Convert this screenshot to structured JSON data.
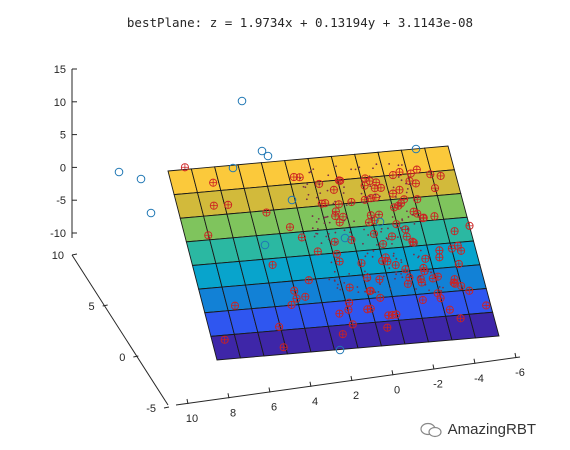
{
  "title": "bestPlane:  z =  1.9734x + 0.13194y + 3.1143e-08",
  "watermark": "AmazingRBT",
  "chart_data": {
    "type": "scatter3d-with-plane",
    "plane": {
      "a": 1.9734,
      "b": 0.13194,
      "c": 3.1143e-08
    },
    "zlim": [
      -10,
      15
    ],
    "xlim": [
      -6,
      10
    ],
    "ylim": [
      -5,
      10
    ],
    "z_ticks": [
      "-10",
      "-5",
      "0",
      "5",
      "10",
      "15"
    ],
    "x_ticks": [
      "10",
      "8",
      "6",
      "4",
      "2",
      "0",
      "-2",
      "-4",
      "-6"
    ],
    "y_ticks": [
      "-5",
      "0",
      "5",
      "10"
    ],
    "colormap": [
      "#3e26a8",
      "#2f56f0",
      "#1281d6",
      "#08a4cc",
      "#2bb8a2",
      "#7fc45d",
      "#d2ba3b",
      "#fbc93b"
    ],
    "outliers_marker": "open-circle",
    "inliers_marker": "circle-with-plus",
    "inlier_color": "#cc2222",
    "outlier_color": "#1f77b4"
  }
}
